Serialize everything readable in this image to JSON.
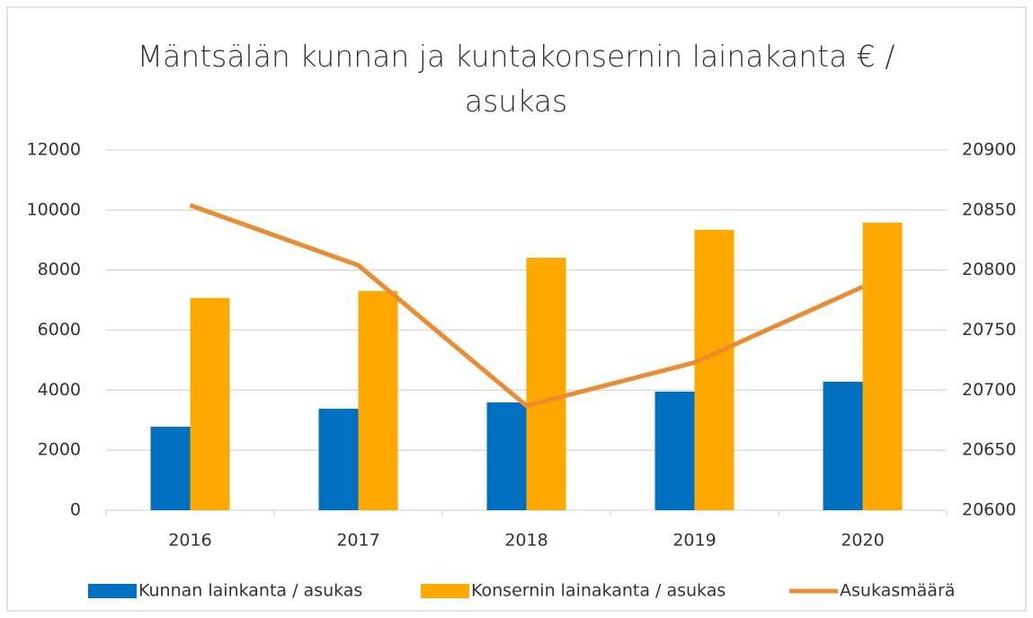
{
  "chart_data": {
    "type": "bar",
    "title": "Mäntsälän kunnan ja kuntakonsernin lainakanta € / asukas",
    "categories": [
      "2016",
      "2017",
      "2018",
      "2019",
      "2020"
    ],
    "series": [
      {
        "name": "Kunnan lainkanta / asukas",
        "color": "#0070c0",
        "values": [
          2780,
          3380,
          3590,
          3950,
          4280
        ]
      },
      {
        "name": "Konsernin lainakanta / asukas",
        "color": "#ffa800",
        "values": [
          7070,
          7300,
          8410,
          9340,
          9580
        ]
      },
      {
        "name": "Asukasmäärä",
        "color": "#ed8b2e",
        "type": "line",
        "axis": "y2",
        "values": [
          20854,
          20804,
          20687,
          20723,
          20786
        ]
      }
    ],
    "ylim": [
      0,
      12000
    ],
    "yticks": [
      0,
      2000,
      4000,
      6000,
      8000,
      10000,
      12000
    ],
    "y2lim": [
      20600,
      20900
    ],
    "y2ticks": [
      20600,
      20650,
      20700,
      20750,
      20800,
      20850,
      20900
    ],
    "grid": true,
    "legend": "bottom"
  }
}
